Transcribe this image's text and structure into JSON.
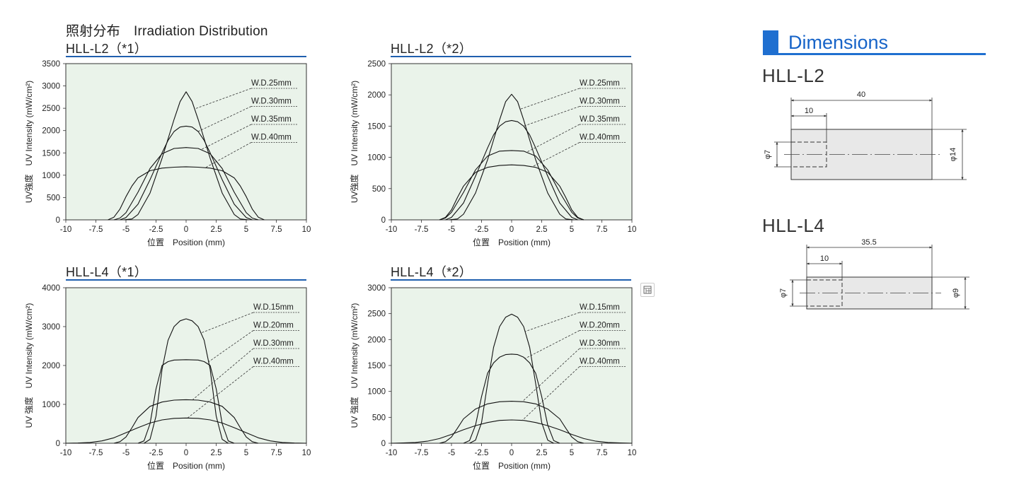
{
  "section_title": "照射分布　Irradiation Distribution",
  "icons": {
    "expand": "expand-image-icon"
  },
  "colors": {
    "accent": "#1f5fae",
    "plot_bg": "#eaf3ea",
    "dim_accent": "#1f6fd0"
  },
  "chart_data": [
    {
      "type": "line",
      "title": "HLL-L2（*1）",
      "xlabel": "位置　Position (mm)",
      "ylabel": "UV強度　UV Intensity (mW/cm²)",
      "xlim": [
        -10,
        10
      ],
      "ylim": [
        0,
        3500
      ],
      "xticks": [
        "-10",
        "-7.5",
        "-5",
        "-2.5",
        "0",
        "2.5",
        "5",
        "7.5",
        "10"
      ],
      "yticks": [
        "0",
        "500",
        "1000",
        "1500",
        "2000",
        "2500",
        "3000",
        "3500"
      ],
      "grid": false,
      "series": [
        {
          "name": "W.D.25mm",
          "x": [
            -5.2,
            -4.5,
            -4,
            -3,
            -2,
            -1,
            -0.5,
            0,
            0.5,
            1,
            2,
            3,
            4,
            4.5,
            5.2
          ],
          "y": [
            0,
            20,
            120,
            600,
            1380,
            2250,
            2650,
            2870,
            2650,
            2250,
            1380,
            600,
            120,
            20,
            0
          ]
        },
        {
          "name": "W.D.30mm",
          "x": [
            -5.5,
            -5,
            -4,
            -3,
            -2,
            -1.5,
            -1,
            -0.5,
            0,
            0.5,
            1,
            1.5,
            2,
            3,
            4,
            5,
            5.5
          ],
          "y": [
            0,
            50,
            350,
            900,
            1500,
            1780,
            1980,
            2080,
            2100,
            2080,
            1980,
            1780,
            1500,
            900,
            350,
            50,
            0
          ]
        },
        {
          "name": "W.D.35mm",
          "x": [
            -6,
            -5.5,
            -5,
            -4,
            -3,
            -2,
            -1,
            0,
            1,
            2,
            3,
            4,
            5,
            5.5,
            6
          ],
          "y": [
            0,
            40,
            160,
            620,
            1150,
            1480,
            1600,
            1620,
            1600,
            1480,
            1150,
            620,
            160,
            40,
            0
          ]
        },
        {
          "name": "W.D.40mm",
          "x": [
            -6.5,
            -6,
            -5.5,
            -5,
            -4.5,
            -4,
            -3,
            -2,
            -1,
            0,
            1,
            2,
            3,
            4,
            4.5,
            5,
            5.5,
            6,
            6.5
          ],
          "y": [
            0,
            60,
            240,
            520,
            760,
            940,
            1100,
            1160,
            1180,
            1190,
            1180,
            1160,
            1100,
            940,
            760,
            520,
            240,
            60,
            0
          ]
        }
      ]
    },
    {
      "type": "line",
      "title": "HLL-L2（*2）",
      "xlabel": "位置　Position (mm)",
      "ylabel": "UV強度　UV Intensity (mW/cm²)",
      "xlim": [
        -10,
        10
      ],
      "ylim": [
        0,
        2500
      ],
      "xticks": [
        "-10",
        "-7.5",
        "-5",
        "-2.5",
        "0",
        "2.5",
        "5",
        "7.5",
        "10"
      ],
      "yticks": [
        "0",
        "500",
        "1000",
        "1500",
        "2000",
        "2500"
      ],
      "grid": false,
      "series": [
        {
          "name": "W.D.25mm",
          "x": [
            -5.2,
            -4.5,
            -4,
            -3,
            -2,
            -1,
            -0.5,
            0,
            0.5,
            1,
            2,
            3,
            4,
            4.5,
            5.2
          ],
          "y": [
            0,
            15,
            90,
            430,
            960,
            1600,
            1890,
            2010,
            1890,
            1600,
            960,
            430,
            90,
            15,
            0
          ]
        },
        {
          "name": "W.D.30mm",
          "x": [
            -5.5,
            -5,
            -4,
            -3,
            -2,
            -1.5,
            -1,
            -0.5,
            0,
            0.5,
            1,
            1.5,
            2,
            3,
            4,
            5,
            5.5
          ],
          "y": [
            0,
            40,
            270,
            700,
            1150,
            1360,
            1500,
            1570,
            1590,
            1570,
            1500,
            1360,
            1150,
            700,
            270,
            40,
            0
          ]
        },
        {
          "name": "W.D.35mm",
          "x": [
            -6,
            -5.5,
            -5,
            -4,
            -3,
            -2,
            -1,
            0,
            1,
            2,
            3,
            4,
            5,
            5.5,
            6
          ],
          "y": [
            0,
            30,
            120,
            440,
            800,
            1020,
            1100,
            1110,
            1100,
            1020,
            800,
            440,
            120,
            30,
            0
          ]
        },
        {
          "name": "W.D.40mm",
          "x": [
            -6,
            -5.5,
            -5,
            -4.5,
            -4,
            -3,
            -2,
            -1,
            0,
            1,
            2,
            3,
            4,
            4.5,
            5,
            5.5,
            6
          ],
          "y": [
            0,
            40,
            160,
            360,
            540,
            760,
            840,
            870,
            880,
            870,
            840,
            760,
            540,
            360,
            160,
            40,
            0
          ]
        }
      ]
    },
    {
      "type": "line",
      "title": "HLL-L4（*1）",
      "xlabel": "位置　Position (mm)",
      "ylabel": "UV 強度　UV Intensity (mW/cm²)",
      "xlim": [
        -10,
        10
      ],
      "ylim": [
        0,
        4000
      ],
      "xticks": [
        "-10",
        "-7.5",
        "-5",
        "-2.5",
        "0",
        "2.5",
        "5",
        "7.5",
        "10"
      ],
      "yticks": [
        "0",
        "1000",
        "2000",
        "3000",
        "4000"
      ],
      "grid": false,
      "series": [
        {
          "name": "W.D.15mm",
          "x": [
            -3.5,
            -3,
            -2.5,
            -2,
            -1.5,
            -1,
            -0.5,
            0,
            0.5,
            1,
            1.5,
            2,
            2.5,
            3,
            3.5
          ],
          "y": [
            0,
            100,
            700,
            1900,
            2650,
            3000,
            3150,
            3200,
            3150,
            3000,
            2650,
            1900,
            700,
            100,
            0
          ]
        },
        {
          "name": "W.D.20mm",
          "x": [
            -4,
            -3.5,
            -3,
            -2.5,
            -2,
            -1.5,
            -1,
            0,
            1,
            1.5,
            2,
            2.5,
            3,
            3.5,
            4
          ],
          "y": [
            0,
            60,
            500,
            1400,
            2000,
            2100,
            2140,
            2150,
            2140,
            2100,
            2000,
            1400,
            500,
            60,
            0
          ]
        },
        {
          "name": "W.D.30mm",
          "x": [
            -6,
            -5.5,
            -5,
            -4.5,
            -4,
            -3,
            -2,
            -1,
            0,
            1,
            2,
            3,
            4,
            4.5,
            5,
            5.5,
            6
          ],
          "y": [
            0,
            40,
            160,
            400,
            660,
            950,
            1060,
            1110,
            1120,
            1110,
            1060,
            950,
            660,
            400,
            160,
            40,
            0
          ]
        },
        {
          "name": "W.D.40mm",
          "x": [
            -10,
            -9,
            -8,
            -7,
            -6,
            -5,
            -4,
            -3,
            -2,
            -1,
            0,
            1,
            2,
            3,
            4,
            5,
            6,
            7,
            8,
            9,
            10
          ],
          "y": [
            0,
            5,
            20,
            60,
            140,
            270,
            400,
            520,
            600,
            640,
            650,
            640,
            600,
            520,
            400,
            270,
            140,
            60,
            20,
            5,
            0
          ]
        }
      ]
    },
    {
      "type": "line",
      "title": "HLL-L4（*2）",
      "xlabel": "位置　Position (mm)",
      "ylabel": "UV 強度　UV Intensity (mW/cm²)",
      "xlim": [
        -10,
        10
      ],
      "ylim": [
        0,
        3000
      ],
      "xticks": [
        "-10",
        "-7.5",
        "-5",
        "-2.5",
        "0",
        "2.5",
        "5",
        "7.5",
        "10"
      ],
      "yticks": [
        "0",
        "500",
        "1000",
        "1500",
        "2000",
        "2500",
        "3000"
      ],
      "grid": false,
      "series": [
        {
          "name": "W.D.15mm",
          "x": [
            -3.5,
            -3,
            -2.5,
            -2,
            -1.5,
            -1,
            -0.5,
            0,
            0.5,
            1,
            1.5,
            2,
            2.5,
            3,
            3.5
          ],
          "y": [
            0,
            60,
            400,
            1150,
            1850,
            2250,
            2430,
            2490,
            2430,
            2250,
            1850,
            1150,
            400,
            60,
            0
          ]
        },
        {
          "name": "W.D.20mm",
          "x": [
            -4,
            -3.5,
            -3,
            -2.5,
            -2,
            -1.5,
            -1,
            -0.5,
            0,
            0.5,
            1,
            1.5,
            2,
            2.5,
            3,
            3.5,
            4
          ],
          "y": [
            0,
            50,
            350,
            900,
            1350,
            1550,
            1660,
            1710,
            1720,
            1710,
            1660,
            1550,
            1350,
            900,
            350,
            50,
            0
          ]
        },
        {
          "name": "W.D.30mm",
          "x": [
            -6,
            -5.5,
            -5,
            -4.5,
            -4,
            -3,
            -2,
            -1,
            0,
            1,
            2,
            3,
            4,
            4.5,
            5,
            5.5,
            6
          ],
          "y": [
            0,
            30,
            120,
            290,
            470,
            660,
            760,
            800,
            810,
            800,
            760,
            660,
            470,
            290,
            120,
            30,
            0
          ]
        },
        {
          "name": "W.D.40mm",
          "x": [
            -10,
            -9,
            -8,
            -7,
            -6,
            -5,
            -4,
            -3,
            -2,
            -1,
            0,
            1,
            2,
            3,
            4,
            5,
            6,
            7,
            8,
            9,
            10
          ],
          "y": [
            0,
            5,
            15,
            40,
            90,
            170,
            260,
            340,
            400,
            440,
            450,
            440,
            400,
            340,
            260,
            170,
            90,
            40,
            15,
            5,
            0
          ]
        }
      ]
    }
  ],
  "dimensions": {
    "title": "Dimensions",
    "models": [
      {
        "name": "HLL-L2",
        "length": "40",
        "inner_length": "10",
        "inner_diameter": "φ7",
        "outer_diameter": "φ14"
      },
      {
        "name": "HLL-L4",
        "length": "35.5",
        "inner_length": "10",
        "inner_diameter": "φ7",
        "outer_diameter": "φ9"
      }
    ]
  }
}
